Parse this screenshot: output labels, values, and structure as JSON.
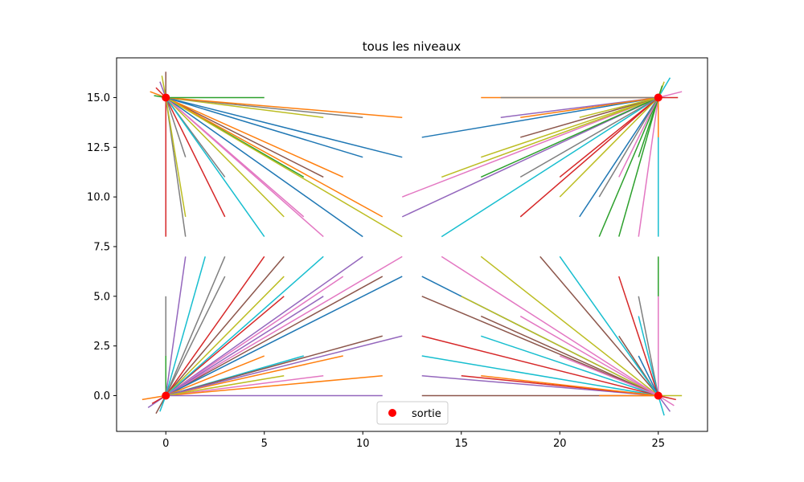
{
  "chart_data": {
    "type": "line",
    "title": "tous les niveaux",
    "xlabel": "",
    "ylabel": "",
    "xlim": [
      -2.5,
      27.5
    ],
    "ylim": [
      -1.8,
      17.0
    ],
    "xticks": [
      0,
      5,
      10,
      15,
      20,
      25
    ],
    "xtick_labels": [
      "0",
      "5",
      "10",
      "15",
      "20",
      "25"
    ],
    "yticks": [
      0.0,
      2.5,
      5.0,
      7.5,
      10.0,
      12.5,
      15.0
    ],
    "ytick_labels": [
      "0.0",
      "2.5",
      "5.0",
      "7.5",
      "10.0",
      "12.5",
      "15.0"
    ],
    "grid": false,
    "legend": {
      "placement": "lower center",
      "entries": [
        {
          "label": "sortie",
          "marker": "circle",
          "color": "#ff0000"
        }
      ]
    },
    "colors": [
      "#1f77b4",
      "#ff7f0e",
      "#2ca02c",
      "#d62728",
      "#9467bd",
      "#8c564b",
      "#e377c2",
      "#7f7f7f",
      "#bcbd22",
      "#17becf"
    ],
    "sortie_points": [
      {
        "x": 0,
        "y": 0
      },
      {
        "x": 0,
        "y": 15
      },
      {
        "x": 25,
        "y": 0
      },
      {
        "x": 25,
        "y": 15
      }
    ],
    "segments": [
      {
        "start": [
          0,
          15
        ],
        "end": [
          0,
          8
        ],
        "color": "#d62728"
      },
      {
        "start": [
          0,
          15
        ],
        "end": [
          1,
          8
        ],
        "color": "#7f7f7f"
      },
      {
        "start": [
          0,
          15
        ],
        "end": [
          1,
          9
        ],
        "color": "#bcbd22"
      },
      {
        "start": [
          0,
          15
        ],
        "end": [
          3,
          9
        ],
        "color": "#d62728"
      },
      {
        "start": [
          0,
          15
        ],
        "end": [
          3,
          11
        ],
        "color": "#7f7f7f"
      },
      {
        "start": [
          0,
          15
        ],
        "end": [
          1,
          12
        ],
        "color": "#7f7f7f"
      },
      {
        "start": [
          0,
          15
        ],
        "end": [
          5,
          8
        ],
        "color": "#17becf"
      },
      {
        "start": [
          0,
          15
        ],
        "end": [
          6,
          9
        ],
        "color": "#bcbd22"
      },
      {
        "start": [
          0,
          15
        ],
        "end": [
          7,
          11
        ],
        "color": "#2ca02c"
      },
      {
        "start": [
          0,
          15
        ],
        "end": [
          7,
          9
        ],
        "color": "#e377c2"
      },
      {
        "start": [
          0,
          15
        ],
        "end": [
          8,
          8
        ],
        "color": "#e377c2"
      },
      {
        "start": [
          0,
          15
        ],
        "end": [
          8,
          11
        ],
        "color": "#8c564b"
      },
      {
        "start": [
          0,
          15
        ],
        "end": [
          9,
          11
        ],
        "color": "#ff7f0e"
      },
      {
        "start": [
          0,
          15
        ],
        "end": [
          10,
          8
        ],
        "color": "#1f77b4"
      },
      {
        "start": [
          0,
          15
        ],
        "end": [
          11,
          9
        ],
        "color": "#ff7f0e"
      },
      {
        "start": [
          0,
          15
        ],
        "end": [
          12,
          8
        ],
        "color": "#bcbd22"
      },
      {
        "start": [
          0,
          15
        ],
        "end": [
          10,
          12
        ],
        "color": "#1f77b4"
      },
      {
        "start": [
          0,
          15
        ],
        "end": [
          12,
          12
        ],
        "color": "#1f77b4"
      },
      {
        "start": [
          0,
          15
        ],
        "end": [
          8,
          14
        ],
        "color": "#bcbd22"
      },
      {
        "start": [
          0,
          15
        ],
        "end": [
          10,
          14
        ],
        "color": "#7f7f7f"
      },
      {
        "start": [
          0,
          15
        ],
        "end": [
          12,
          14
        ],
        "color": "#ff7f0e"
      },
      {
        "start": [
          0,
          15
        ],
        "end": [
          5,
          15
        ],
        "color": "#2ca02c"
      },
      {
        "start": [
          0,
          15
        ],
        "end": [
          0,
          16.3
        ],
        "color": "#8c564b"
      },
      {
        "start": [
          0,
          15
        ],
        "end": [
          -0.2,
          16.1
        ],
        "color": "#bcbd22"
      },
      {
        "start": [
          0,
          15
        ],
        "end": [
          -0.5,
          15.5
        ],
        "color": "#d62728"
      },
      {
        "start": [
          0,
          15
        ],
        "end": [
          -0.8,
          15.3
        ],
        "color": "#ff7f0e"
      },
      {
        "start": [
          0,
          15
        ],
        "end": [
          -0.6,
          15.1
        ],
        "color": "#2ca02c"
      },
      {
        "start": [
          0,
          15
        ],
        "end": [
          -0.3,
          15.8
        ],
        "color": "#9467bd"
      },
      {
        "start": [
          0,
          0
        ],
        "end": [
          0,
          5
        ],
        "color": "#7f7f7f"
      },
      {
        "start": [
          0,
          0
        ],
        "end": [
          0,
          2
        ],
        "color": "#2ca02c"
      },
      {
        "start": [
          0,
          0
        ],
        "end": [
          1,
          7
        ],
        "color": "#9467bd"
      },
      {
        "start": [
          0,
          0
        ],
        "end": [
          2,
          7
        ],
        "color": "#17becf"
      },
      {
        "start": [
          0,
          0
        ],
        "end": [
          3,
          7
        ],
        "color": "#7f7f7f"
      },
      {
        "start": [
          0,
          0
        ],
        "end": [
          3,
          6
        ],
        "color": "#7f7f7f"
      },
      {
        "start": [
          0,
          0
        ],
        "end": [
          5,
          7
        ],
        "color": "#d62728"
      },
      {
        "start": [
          0,
          0
        ],
        "end": [
          6,
          7
        ],
        "color": "#8c564b"
      },
      {
        "start": [
          0,
          0
        ],
        "end": [
          6,
          6
        ],
        "color": "#bcbd22"
      },
      {
        "start": [
          0,
          0
        ],
        "end": [
          6,
          5
        ],
        "color": "#d62728"
      },
      {
        "start": [
          0,
          0
        ],
        "end": [
          8,
          7
        ],
        "color": "#17becf"
      },
      {
        "start": [
          0,
          0
        ],
        "end": [
          10,
          7
        ],
        "color": "#9467bd"
      },
      {
        "start": [
          0,
          0
        ],
        "end": [
          9,
          6
        ],
        "color": "#e377c2"
      },
      {
        "start": [
          0,
          0
        ],
        "end": [
          11,
          6
        ],
        "color": "#8c564b"
      },
      {
        "start": [
          0,
          0
        ],
        "end": [
          12,
          7
        ],
        "color": "#e377c2"
      },
      {
        "start": [
          0,
          0
        ],
        "end": [
          12,
          6
        ],
        "color": "#1f77b4"
      },
      {
        "start": [
          0,
          0
        ],
        "end": [
          8,
          5
        ],
        "color": "#9467bd"
      },
      {
        "start": [
          0,
          0
        ],
        "end": [
          5,
          2
        ],
        "color": "#ff7f0e"
      },
      {
        "start": [
          0,
          0
        ],
        "end": [
          7,
          2
        ],
        "color": "#17becf"
      },
      {
        "start": [
          0,
          0
        ],
        "end": [
          9,
          2
        ],
        "color": "#ff7f0e"
      },
      {
        "start": [
          0,
          0
        ],
        "end": [
          11,
          3
        ],
        "color": "#8c564b"
      },
      {
        "start": [
          0,
          0
        ],
        "end": [
          12,
          3
        ],
        "color": "#9467bd"
      },
      {
        "start": [
          0,
          0
        ],
        "end": [
          8,
          1
        ],
        "color": "#e377c2"
      },
      {
        "start": [
          0,
          0
        ],
        "end": [
          11,
          1
        ],
        "color": "#ff7f0e"
      },
      {
        "start": [
          0,
          0
        ],
        "end": [
          6,
          1
        ],
        "color": "#bcbd22"
      },
      {
        "start": [
          0,
          0
        ],
        "end": [
          11,
          0
        ],
        "color": "#9467bd"
      },
      {
        "start": [
          0,
          0
        ],
        "end": [
          -0.5,
          -0.9
        ],
        "color": "#8c564b"
      },
      {
        "start": [
          0,
          0
        ],
        "end": [
          -1.2,
          -0.2
        ],
        "color": "#ff7f0e"
      },
      {
        "start": [
          0,
          0
        ],
        "end": [
          -0.3,
          -0.8
        ],
        "color": "#17becf"
      },
      {
        "start": [
          0,
          0
        ],
        "end": [
          -0.9,
          -0.6
        ],
        "color": "#9467bd"
      },
      {
        "start": [
          0,
          0
        ],
        "end": [
          -0.7,
          -0.4
        ],
        "color": "#d62728"
      },
      {
        "start": [
          25,
          15
        ],
        "end": [
          25,
          8
        ],
        "color": "#17becf"
      },
      {
        "start": [
          25,
          15
        ],
        "end": [
          24,
          8
        ],
        "color": "#e377c2"
      },
      {
        "start": [
          25,
          15
        ],
        "end": [
          23,
          8
        ],
        "color": "#2ca02c"
      },
      {
        "start": [
          25,
          15
        ],
        "end": [
          22,
          8
        ],
        "color": "#2ca02c"
      },
      {
        "start": [
          25,
          15
        ],
        "end": [
          21,
          9
        ],
        "color": "#1f77b4"
      },
      {
        "start": [
          25,
          15
        ],
        "end": [
          18,
          9
        ],
        "color": "#d62728"
      },
      {
        "start": [
          25,
          15
        ],
        "end": [
          24,
          12
        ],
        "color": "#2ca02c"
      },
      {
        "start": [
          25,
          15
        ],
        "end": [
          23,
          11
        ],
        "color": "#e377c2"
      },
      {
        "start": [
          25,
          15
        ],
        "end": [
          22,
          10
        ],
        "color": "#7f7f7f"
      },
      {
        "start": [
          25,
          15
        ],
        "end": [
          20,
          10
        ],
        "color": "#bcbd22"
      },
      {
        "start": [
          25,
          15
        ],
        "end": [
          20,
          11
        ],
        "color": "#d62728"
      },
      {
        "start": [
          25,
          15
        ],
        "end": [
          14,
          8
        ],
        "color": "#17becf"
      },
      {
        "start": [
          25,
          15
        ],
        "end": [
          12,
          9
        ],
        "color": "#9467bd"
      },
      {
        "start": [
          25,
          15
        ],
        "end": [
          12,
          10
        ],
        "color": "#e377c2"
      },
      {
        "start": [
          25,
          15
        ],
        "end": [
          14,
          11
        ],
        "color": "#bcbd22"
      },
      {
        "start": [
          25,
          15
        ],
        "end": [
          16,
          11
        ],
        "color": "#2ca02c"
      },
      {
        "start": [
          25,
          15
        ],
        "end": [
          18,
          11
        ],
        "color": "#7f7f7f"
      },
      {
        "start": [
          25,
          15
        ],
        "end": [
          16,
          12
        ],
        "color": "#bcbd22"
      },
      {
        "start": [
          25,
          15
        ],
        "end": [
          18,
          13
        ],
        "color": "#8c564b"
      },
      {
        "start": [
          25,
          15
        ],
        "end": [
          13,
          13
        ],
        "color": "#1f77b4"
      },
      {
        "start": [
          25,
          15
        ],
        "end": [
          17,
          14
        ],
        "color": "#9467bd"
      },
      {
        "start": [
          25,
          15
        ],
        "end": [
          18,
          14
        ],
        "color": "#ff7f0e"
      },
      {
        "start": [
          25,
          15
        ],
        "end": [
          21,
          14
        ],
        "color": "#bcbd22"
      },
      {
        "start": [
          25,
          15
        ],
        "end": [
          16,
          15
        ],
        "color": "#ff7f0e"
      },
      {
        "start": [
          25,
          15
        ],
        "end": [
          17,
          15
        ],
        "color": "#7f7f7f"
      },
      {
        "start": [
          25,
          15
        ],
        "end": [
          25,
          13
        ],
        "color": "#ff7f0e"
      },
      {
        "start": [
          25,
          15
        ],
        "end": [
          25.6,
          16.0
        ],
        "color": "#17becf"
      },
      {
        "start": [
          25,
          15
        ],
        "end": [
          25.3,
          15.8
        ],
        "color": "#bcbd22"
      },
      {
        "start": [
          25,
          15
        ],
        "end": [
          26.2,
          15.3
        ],
        "color": "#e377c2"
      },
      {
        "start": [
          25,
          15
        ],
        "end": [
          26.0,
          15.0
        ],
        "color": "#d62728"
      },
      {
        "start": [
          25,
          15
        ],
        "end": [
          25.2,
          15.6
        ],
        "color": "#2ca02c"
      },
      {
        "start": [
          25,
          0
        ],
        "end": [
          25,
          7
        ],
        "color": "#2ca02c"
      },
      {
        "start": [
          25,
          0
        ],
        "end": [
          25,
          5
        ],
        "color": "#e377c2"
      },
      {
        "start": [
          25,
          0
        ],
        "end": [
          24,
          5
        ],
        "color": "#7f7f7f"
      },
      {
        "start": [
          25,
          0
        ],
        "end": [
          24,
          4
        ],
        "color": "#17becf"
      },
      {
        "start": [
          25,
          0
        ],
        "end": [
          23,
          6
        ],
        "color": "#d62728"
      },
      {
        "start": [
          25,
          0
        ],
        "end": [
          23,
          3
        ],
        "color": "#8c564b"
      },
      {
        "start": [
          25,
          0
        ],
        "end": [
          24,
          2
        ],
        "color": "#1f77b4"
      },
      {
        "start": [
          25,
          0
        ],
        "end": [
          19,
          7
        ],
        "color": "#8c564b"
      },
      {
        "start": [
          25,
          0
        ],
        "end": [
          20,
          7
        ],
        "color": "#17becf"
      },
      {
        "start": [
          25,
          0
        ],
        "end": [
          16,
          7
        ],
        "color": "#bcbd22"
      },
      {
        "start": [
          25,
          0
        ],
        "end": [
          14,
          7
        ],
        "color": "#e377c2"
      },
      {
        "start": [
          25,
          0
        ],
        "end": [
          13,
          6
        ],
        "color": "#1f77b4"
      },
      {
        "start": [
          25,
          0
        ],
        "end": [
          15,
          5
        ],
        "color": "#bcbd22"
      },
      {
        "start": [
          25,
          0
        ],
        "end": [
          13,
          5
        ],
        "color": "#8c564b"
      },
      {
        "start": [
          25,
          0
        ],
        "end": [
          16,
          4
        ],
        "color": "#8c564b"
      },
      {
        "start": [
          25,
          0
        ],
        "end": [
          18,
          4
        ],
        "color": "#e377c2"
      },
      {
        "start": [
          25,
          0
        ],
        "end": [
          16,
          3
        ],
        "color": "#17becf"
      },
      {
        "start": [
          25,
          0
        ],
        "end": [
          13,
          3
        ],
        "color": "#d62728"
      },
      {
        "start": [
          25,
          0
        ],
        "end": [
          13,
          2
        ],
        "color": "#17becf"
      },
      {
        "start": [
          25,
          0
        ],
        "end": [
          20,
          2
        ],
        "color": "#e377c2"
      },
      {
        "start": [
          25,
          0
        ],
        "end": [
          13,
          1
        ],
        "color": "#9467bd"
      },
      {
        "start": [
          25,
          0
        ],
        "end": [
          15,
          1
        ],
        "color": "#d62728"
      },
      {
        "start": [
          25,
          0
        ],
        "end": [
          16,
          1
        ],
        "color": "#ff7f0e"
      },
      {
        "start": [
          25,
          0
        ],
        "end": [
          13,
          0
        ],
        "color": "#8c564b"
      },
      {
        "start": [
          25,
          0
        ],
        "end": [
          22,
          0
        ],
        "color": "#ff7f0e"
      },
      {
        "start": [
          25,
          0
        ],
        "end": [
          26.2,
          0
        ],
        "color": "#bcbd22"
      },
      {
        "start": [
          25,
          0
        ],
        "end": [
          25.3,
          -1.0
        ],
        "color": "#17becf"
      },
      {
        "start": [
          25,
          0
        ],
        "end": [
          25.8,
          -0.5
        ],
        "color": "#e377c2"
      },
      {
        "start": [
          25,
          0
        ],
        "end": [
          25.6,
          -0.8
        ],
        "color": "#9467bd"
      },
      {
        "start": [
          25,
          0
        ],
        "end": [
          25.9,
          -0.2
        ],
        "color": "#d62728"
      }
    ]
  }
}
